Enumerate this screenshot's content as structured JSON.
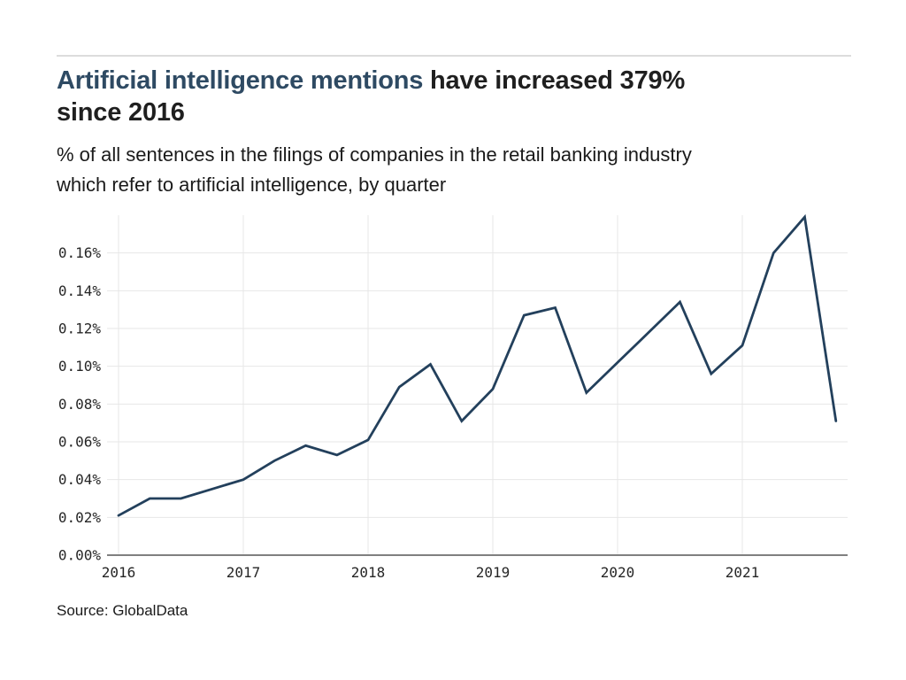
{
  "header": {
    "title_highlight": "Artificial intelligence mentions",
    "title_rest": " have increased 379%",
    "title_line2": "since 2016",
    "subtitle_line1": "% of all sentences in the filings of companies in the retail banking industry",
    "subtitle_line2": "which refer to artificial intelligence, by quarter"
  },
  "source": {
    "label": "Source: GlobalData"
  },
  "colors": {
    "title_accent": "#2e4a63",
    "title_text": "#1f1f1f",
    "line": "#23405c",
    "gridline": "#e7e7e7",
    "axis": "#808080",
    "tick_text": "#262626",
    "divider": "#dcdcdc",
    "background": "#ffffff"
  },
  "chart_data": {
    "type": "line",
    "title": "Artificial intelligence mentions have increased 379% since 2016",
    "subtitle": "% of all sentences in the filings of companies in the retail banking industry which refer to artificial intelligence, by quarter",
    "unit": "%",
    "xlabel": "",
    "ylabel": "",
    "legend_position": "none",
    "grid": true,
    "ylim": [
      0,
      0.18
    ],
    "x": [
      "2016 Q1",
      "2016 Q2",
      "2016 Q3",
      "2016 Q4",
      "2017 Q1",
      "2017 Q2",
      "2017 Q3",
      "2017 Q4",
      "2018 Q1",
      "2018 Q2",
      "2018 Q3",
      "2018 Q4",
      "2019 Q1",
      "2019 Q2",
      "2019 Q3",
      "2019 Q4",
      "2020 Q1",
      "2020 Q2",
      "2020 Q3",
      "2020 Q4",
      "2021 Q1",
      "2021 Q2",
      "2021 Q3",
      "2021 Q4"
    ],
    "values": [
      0.021,
      0.03,
      0.03,
      0.035,
      0.04,
      0.05,
      0.058,
      0.053,
      0.061,
      0.089,
      0.101,
      0.071,
      0.088,
      0.127,
      0.131,
      0.086,
      0.102,
      0.118,
      0.134,
      0.096,
      0.111,
      0.16,
      0.179,
      0.071
    ],
    "x_tick_labels": [
      "2016",
      "2017",
      "2018",
      "2019",
      "2020",
      "2021"
    ],
    "y_tick_values": [
      0.0,
      0.02,
      0.04,
      0.06,
      0.08,
      0.1,
      0.12,
      0.14,
      0.16
    ],
    "y_tick_labels": [
      "0.00%",
      "0.02%",
      "0.04%",
      "0.06%",
      "0.08%",
      "0.10%",
      "0.12%",
      "0.14%",
      "0.16%"
    ]
  }
}
